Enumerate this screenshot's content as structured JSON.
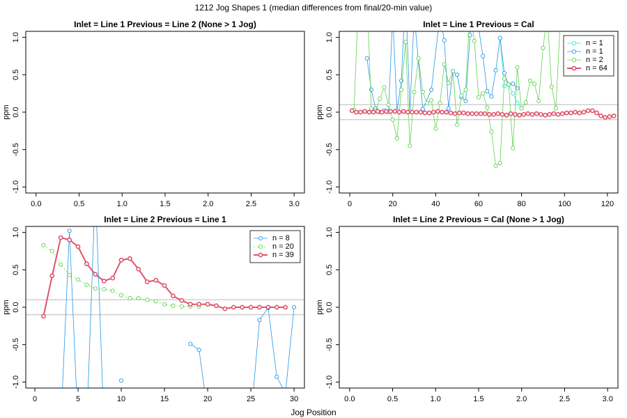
{
  "title": "1212 Jog Shapes 1 (median differences from final/20-min value)",
  "xlabel": "Jog Position",
  "chart_data": [
    {
      "type": "line",
      "title": "Inlet = Line 1  Previous = Line 2 (None > 1 Jog)",
      "ylabel": "ppm",
      "xlim": [
        -0.12,
        3.12
      ],
      "xticks": [
        {
          "value": 0,
          "label": "0.0"
        },
        {
          "value": 0.5,
          "label": "0.5"
        },
        {
          "value": 1,
          "label": "1.0"
        },
        {
          "value": 1.5,
          "label": "1.5"
        },
        {
          "value": 2,
          "label": "2.0"
        },
        {
          "value": 2.5,
          "label": "2.5"
        },
        {
          "value": 3,
          "label": "3.0"
        }
      ],
      "ylim": [
        -1.08,
        1.08
      ],
      "yticks": [
        {
          "value": -1,
          "label": "-1.0"
        },
        {
          "value": -0.5,
          "label": "-0.5"
        },
        {
          "value": 0,
          "label": "0.0"
        },
        {
          "value": 0.5,
          "label": "0.5"
        },
        {
          "value": 1,
          "label": "1.0"
        }
      ],
      "series": []
    },
    {
      "type": "line",
      "title": "Inlet = Line 1  Previous = Cal",
      "ylabel": "ppm",
      "xlim": [
        -4.9,
        124.9
      ],
      "xticks": [
        0,
        20,
        40,
        60,
        80,
        100,
        120
      ],
      "ylim": [
        -1.08,
        1.08
      ],
      "yticks": [
        {
          "value": -1,
          "label": "-1.0"
        },
        {
          "value": -0.5,
          "label": "-0.5"
        },
        {
          "value": 0,
          "label": "0.0"
        },
        {
          "value": 0.5,
          "label": "0.5"
        },
        {
          "value": 1,
          "label": "1.0"
        }
      ],
      "hlines": [
        -0.1,
        0.1
      ],
      "legend": "topright",
      "series": [
        {
          "name": "n = 1",
          "color": "#28E2E5",
          "x": [
            70,
            72,
            74,
            76,
            78,
            80
          ],
          "values": [
            0.99,
            0.35,
            0.37,
            0.25,
            0.12,
            0.05
          ]
        },
        {
          "name": "n = 1",
          "color": "#2297E6",
          "x": [
            8,
            10,
            12,
            14,
            16,
            18,
            20,
            22,
            24,
            26,
            28,
            30,
            34,
            38,
            42,
            44,
            46,
            48,
            50,
            52,
            54,
            56,
            58,
            62,
            64,
            66,
            68,
            70,
            72,
            74,
            76,
            78
          ],
          "values": [
            0.72,
            0.3,
            0.05,
            0.0,
            0.02,
            0.0,
            1.3,
            0.02,
            0.42,
            1.6,
            0.01,
            1.3,
            0.04,
            0.3,
            1.3,
            0.96,
            0.05,
            0.55,
            0.5,
            0.2,
            0.15,
            1.03,
            1.5,
            0.75,
            0.28,
            0.21,
            0.56,
            0.99,
            0.52,
            0.37,
            0.38,
            0.32
          ]
        },
        {
          "name": "n = 2",
          "color": "#61D04F",
          "x": [
            2,
            4,
            6,
            8,
            10,
            12,
            14,
            16,
            18,
            20,
            22,
            24,
            26,
            28,
            30,
            32,
            34,
            36,
            38,
            40,
            42,
            44,
            46,
            48,
            50,
            52,
            54,
            56,
            58,
            60,
            62,
            64,
            66,
            68,
            70,
            72,
            74,
            76,
            78,
            80,
            82,
            84,
            86,
            88,
            90,
            92,
            94,
            96,
            98
          ],
          "values": [
            0.03,
            1.5,
            1.3,
            1.6,
            0.05,
            0.02,
            0.18,
            0.33,
            0.1,
            -0.1,
            -0.35,
            0.3,
            0.94,
            -0.45,
            0.27,
            0.72,
            0.27,
            0.12,
            0.16,
            -0.22,
            0.12,
            0.64,
            0.39,
            0.55,
            -0.17,
            0.22,
            0.3,
            1.4,
            0.95,
            0.2,
            0.25,
            0.06,
            -0.26,
            -0.72,
            -0.68,
            0.45,
            0.37,
            -0.48,
            0.6,
            0.05,
            0.13,
            0.42,
            0.38,
            0.15,
            0.86,
            1.3,
            0.34,
            0.05,
            1.2
          ]
        },
        {
          "name": "n = 64",
          "color": "#DF536B",
          "bold": true,
          "x": [
            1,
            3,
            5,
            7,
            9,
            11,
            13,
            15,
            17,
            19,
            21,
            23,
            25,
            27,
            29,
            31,
            33,
            35,
            37,
            39,
            41,
            43,
            45,
            47,
            49,
            51,
            53,
            55,
            57,
            59,
            61,
            63,
            65,
            67,
            69,
            71,
            73,
            75,
            77,
            79,
            81,
            83,
            85,
            87,
            89,
            91,
            93,
            95,
            97,
            99,
            101,
            103,
            105,
            107,
            109,
            111,
            113,
            115,
            117,
            119,
            121,
            123
          ],
          "values": [
            0.02,
            0.0,
            0.0,
            0.01,
            0.0,
            0.0,
            0.01,
            0.0,
            0.01,
            0.01,
            0.01,
            0.0,
            0.01,
            0.0,
            0.0,
            0.0,
            0.0,
            -0.01,
            -0.01,
            0.0,
            0.01,
            0.0,
            0.0,
            -0.01,
            -0.02,
            -0.01,
            -0.01,
            -0.02,
            -0.02,
            -0.02,
            -0.02,
            -0.02,
            -0.03,
            -0.03,
            -0.02,
            -0.03,
            -0.04,
            -0.02,
            -0.03,
            -0.04,
            -0.03,
            -0.02,
            -0.03,
            -0.02,
            -0.03,
            -0.04,
            -0.03,
            -0.02,
            -0.03,
            -0.02,
            -0.01,
            -0.01,
            0.0,
            -0.01,
            0.0,
            0.02,
            0.02,
            -0.01,
            -0.05,
            -0.07,
            -0.06,
            -0.05
          ]
        }
      ]
    },
    {
      "type": "line",
      "title": "Inlet = Line 2  Previous = Line 1",
      "ylabel": "ppm",
      "xlim": [
        -1.05,
        31.2
      ],
      "xticks": [
        0,
        5,
        10,
        15,
        20,
        25,
        30
      ],
      "ylim": [
        -1.08,
        1.08
      ],
      "yticks": [
        {
          "value": -1,
          "label": "-1.0"
        },
        {
          "value": -0.5,
          "label": "-0.5"
        },
        {
          "value": 0,
          "label": "0.0"
        },
        {
          "value": 0.5,
          "label": "0.5"
        },
        {
          "value": 1,
          "label": "1.0"
        }
      ],
      "hlines": [
        -0.1,
        0.1
      ],
      "legend": "topright",
      "series": [
        {
          "name": "n = 8",
          "color": "#2297E6",
          "x": [
            3,
            4,
            5,
            6,
            7,
            8,
            9,
            10,
            11,
            12,
            13,
            14,
            15,
            16,
            17,
            18,
            19,
            20,
            21,
            22,
            23,
            24,
            25,
            26,
            27,
            28,
            29,
            30
          ],
          "values": [
            -1.6,
            1.02,
            -1.6,
            -1.6,
            1.6,
            -1.6,
            null,
            -0.98,
            null,
            null,
            null,
            null,
            null,
            null,
            null,
            -0.49,
            -0.57,
            -1.4,
            null,
            null,
            null,
            null,
            -1.5,
            -0.17,
            -0.01,
            -0.93,
            -1.15,
            0.0
          ]
        },
        {
          "name": "n = 20",
          "color": "#61D04F",
          "dashed": true,
          "x": [
            1,
            2,
            3,
            4,
            5,
            6,
            7,
            8,
            9,
            10,
            11,
            12,
            13,
            14,
            15,
            16,
            17,
            18,
            19
          ],
          "values": [
            0.83,
            0.75,
            0.57,
            0.43,
            0.37,
            0.3,
            0.25,
            0.24,
            0.22,
            0.16,
            0.12,
            0.12,
            0.1,
            0.08,
            0.04,
            0.02,
            0.01,
            0.01,
            0.01
          ]
        },
        {
          "name": "n = 39",
          "color": "#DF536B",
          "bold": true,
          "x": [
            1,
            2,
            3,
            4,
            5,
            6,
            7,
            8,
            9,
            10,
            11,
            12,
            13,
            14,
            15,
            16,
            17,
            18,
            19,
            20,
            21,
            22,
            23,
            24,
            25,
            26,
            27,
            28,
            29
          ],
          "values": [
            -0.12,
            0.42,
            0.93,
            0.9,
            0.81,
            0.58,
            0.44,
            0.35,
            0.39,
            0.63,
            0.65,
            0.51,
            0.34,
            0.36,
            0.29,
            0.15,
            0.09,
            0.04,
            0.04,
            0.04,
            0.02,
            -0.02,
            0.0,
            0.0,
            0.0,
            0.0,
            0.0,
            0.0,
            0.0
          ]
        }
      ]
    },
    {
      "type": "line",
      "title": "Inlet = Line 2  Previous = Cal (None > 1 Jog)",
      "ylabel": "ppm",
      "xlim": [
        -0.12,
        3.12
      ],
      "xticks": [
        {
          "value": 0,
          "label": "0.0"
        },
        {
          "value": 0.5,
          "label": "0.5"
        },
        {
          "value": 1,
          "label": "1.0"
        },
        {
          "value": 1.5,
          "label": "1.5"
        },
        {
          "value": 2,
          "label": "2.0"
        },
        {
          "value": 2.5,
          "label": "2.5"
        },
        {
          "value": 3,
          "label": "3.0"
        }
      ],
      "ylim": [
        -1.08,
        1.08
      ],
      "yticks": [
        {
          "value": -1,
          "label": "-1.0"
        },
        {
          "value": -0.5,
          "label": "-0.5"
        },
        {
          "value": 0,
          "label": "0.0"
        },
        {
          "value": 0.5,
          "label": "0.5"
        },
        {
          "value": 1,
          "label": "1.0"
        }
      ],
      "series": []
    }
  ]
}
